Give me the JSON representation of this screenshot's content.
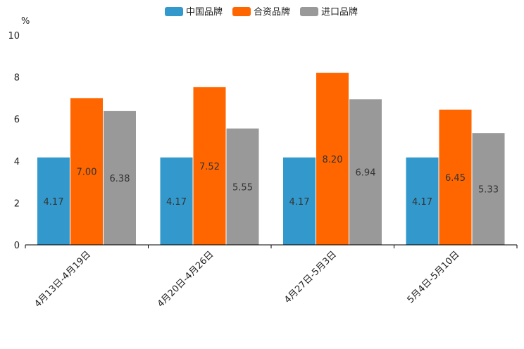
{
  "chart_data": {
    "type": "bar",
    "ylabel": "%",
    "ylim": [
      0,
      10
    ],
    "yticks": [
      0,
      2,
      4,
      6,
      8,
      10
    ],
    "legend_position": "top-center",
    "categories": [
      "4月13日-4月19日",
      "4月20日-4月26日",
      "4月27日-5月3日",
      "5月4日-5月10日"
    ],
    "series": [
      {
        "name": "中国品牌",
        "color": "#3399cc",
        "values": [
          4.17,
          4.17,
          4.17,
          4.17
        ],
        "labels": [
          "4.17",
          "4.17",
          "4.17",
          "4.17"
        ]
      },
      {
        "name": "合资品牌",
        "color": "#ff6600",
        "values": [
          7.0,
          7.52,
          8.2,
          6.45
        ],
        "labels": [
          "7.00",
          "7.52",
          "8.20",
          "6.45"
        ]
      },
      {
        "name": "进口品牌",
        "color": "#999999",
        "values": [
          6.38,
          5.55,
          6.94,
          5.33
        ],
        "labels": [
          "6.38",
          "5.55",
          "6.94",
          "5.33"
        ]
      }
    ]
  }
}
